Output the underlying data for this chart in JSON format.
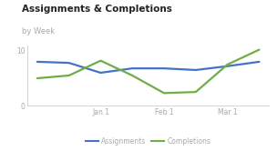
{
  "title": "Assignments & Completions",
  "subtitle": "by Week",
  "x_labels": [
    "Jan 1",
    "Feb 1",
    "Mar 1"
  ],
  "x_tick_positions": [
    2,
    4,
    6
  ],
  "assignments_x": [
    0,
    1,
    2,
    3,
    4,
    5,
    6,
    7
  ],
  "assignments_y": [
    8.0,
    7.8,
    6.0,
    6.8,
    6.8,
    6.5,
    7.2,
    8.0
  ],
  "completions_x": [
    0,
    1,
    2,
    3,
    4,
    5,
    6,
    7
  ],
  "completions_y": [
    5.0,
    5.5,
    8.2,
    5.5,
    2.3,
    2.5,
    7.5,
    10.2
  ],
  "assignments_color": "#4472c4",
  "completions_color": "#70ad47",
  "background_color": "#f5f5f5",
  "card_color": "#ffffff",
  "axis_color": "#cccccc",
  "title_color": "#222222",
  "subtitle_color": "#aaaaaa",
  "tick_color": "#aaaaaa",
  "ylim": [
    0,
    11
  ],
  "yticks": [
    0,
    10
  ],
  "xlim": [
    -0.3,
    7.3
  ],
  "legend_labels": [
    "Assignments",
    "Completions"
  ],
  "legend_colors": [
    "#4472c4",
    "#70ad47"
  ]
}
